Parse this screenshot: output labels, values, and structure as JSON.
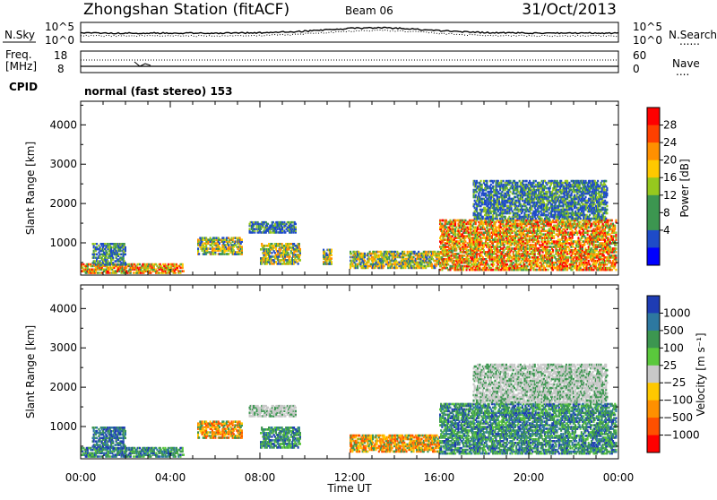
{
  "header": {
    "station": "Zhongshan Station (fitACF)",
    "beam": "Beam 06",
    "date": "31/Oct/2013"
  },
  "noise_panel": {
    "left_label": "N.Sky",
    "left_ticks": [
      "10^5",
      "10^0"
    ],
    "right_ticks": [
      "10^5",
      "10^0"
    ],
    "right_label": "N.Search",
    "right_legend_line": "......"
  },
  "freq_panel": {
    "left_label_line1": "Freq.",
    "left_label_line2": "[MHz]",
    "left_ticks": [
      "18",
      "8"
    ],
    "right_ticks": [
      "60",
      "0"
    ],
    "right_label": "Nave",
    "right_legend_line": "...."
  },
  "cpid": {
    "label": "CPID",
    "text": "normal (fast stereo) 153"
  },
  "time_axis": {
    "label": "Time UT",
    "ticks": [
      "00:00",
      "04:00",
      "08:00",
      "12:00",
      "16:00",
      "20:00",
      "00:00"
    ]
  },
  "chart_data": [
    {
      "type": "heatmap",
      "ylabel": "Slant Range [km]",
      "xlabel": "Time UT",
      "xlim": [
        0,
        24
      ],
      "ylim": [
        180,
        4600
      ],
      "y_ticks": [
        1000,
        2000,
        3000,
        4000
      ],
      "colorbar": {
        "label": "Power [dB]",
        "ticks": [
          "28",
          "24",
          "20",
          "16",
          "12",
          "8",
          "4"
        ],
        "colors": [
          "#ff0000",
          "#ff4000",
          "#ff9000",
          "#ffc800",
          "#96c81e",
          "#3c9650",
          "#3c9650",
          "#1e4bc8",
          "#0000ff"
        ]
      },
      "echo_regions": [
        {
          "t0": 0.0,
          "t1": 4.6,
          "r0": 220,
          "r1": 480,
          "level": "high"
        },
        {
          "t0": 0.5,
          "t1": 2.0,
          "r0": 430,
          "r1": 1000,
          "level": "low"
        },
        {
          "t0": 5.2,
          "t1": 7.2,
          "r0": 700,
          "r1": 1150,
          "level": "mid"
        },
        {
          "t0": 7.5,
          "t1": 9.6,
          "r0": 1250,
          "r1": 1550,
          "level": "low"
        },
        {
          "t0": 8.0,
          "t1": 9.8,
          "r0": 450,
          "r1": 1000,
          "level": "mid"
        },
        {
          "t0": 10.8,
          "t1": 11.2,
          "r0": 450,
          "r1": 850,
          "level": "mid"
        },
        {
          "t0": 12.0,
          "t1": 16.0,
          "r0": 350,
          "r1": 800,
          "level": "mid"
        },
        {
          "t0": 16.0,
          "t1": 23.9,
          "r0": 300,
          "r1": 1600,
          "level": "high"
        },
        {
          "t0": 17.5,
          "t1": 23.5,
          "r0": 1600,
          "r1": 2600,
          "level": "low"
        }
      ]
    },
    {
      "type": "heatmap",
      "ylabel": "Slant Range [km]",
      "xlabel": "Time UT",
      "xlim": [
        0,
        24
      ],
      "ylim": [
        180,
        4600
      ],
      "y_ticks": [
        1000,
        2000,
        3000,
        4000
      ],
      "colorbar": {
        "label": "Velocity [m s⁻¹]",
        "ticks": [
          "1000",
          "500",
          "100",
          "25",
          "−25",
          "−100",
          "−500",
          "−1000"
        ],
        "colors": [
          "#1e3cb4",
          "#2d78a0",
          "#3c9650",
          "#5ac83c",
          "#c8c8c8",
          "#ffc800",
          "#ff9000",
          "#ff5000",
          "#ff0000"
        ]
      },
      "echo_regions": [
        {
          "t0": 0.0,
          "t1": 4.6,
          "r0": 220,
          "r1": 480,
          "level": "green"
        },
        {
          "t0": 0.5,
          "t1": 2.0,
          "r0": 430,
          "r1": 1000,
          "level": "blue"
        },
        {
          "t0": 5.2,
          "t1": 7.2,
          "r0": 700,
          "r1": 1150,
          "level": "orange"
        },
        {
          "t0": 7.5,
          "t1": 9.6,
          "r0": 1250,
          "r1": 1550,
          "level": "gray"
        },
        {
          "t0": 8.0,
          "t1": 9.8,
          "r0": 450,
          "r1": 1000,
          "level": "green"
        },
        {
          "t0": 12.0,
          "t1": 16.0,
          "r0": 350,
          "r1": 800,
          "level": "orange"
        },
        {
          "t0": 16.0,
          "t1": 23.9,
          "r0": 300,
          "r1": 1600,
          "level": "green"
        },
        {
          "t0": 17.5,
          "t1": 23.5,
          "r0": 1600,
          "r1": 2600,
          "level": "gray"
        }
      ]
    }
  ]
}
